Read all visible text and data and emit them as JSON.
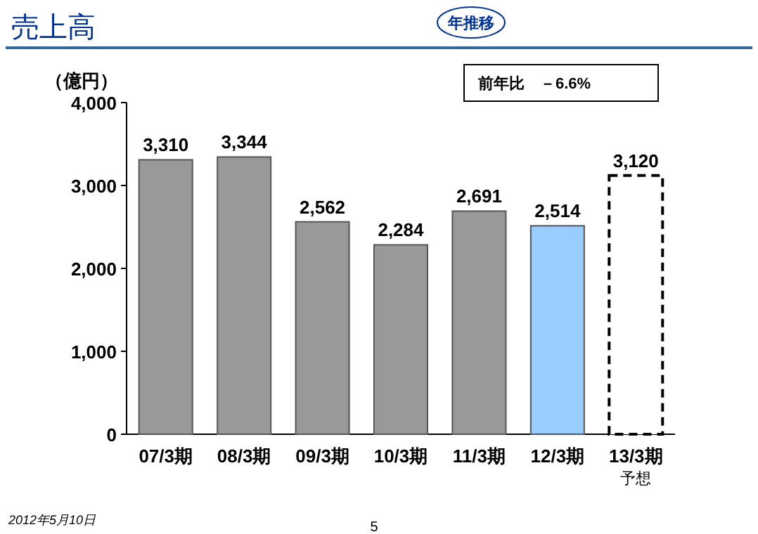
{
  "chart_data": {
    "type": "bar",
    "title": "売上高",
    "ylabel": "（億円）",
    "categories": [
      "07/3期",
      "08/3期",
      "09/3期",
      "10/3期",
      "11/3期",
      "12/3期",
      "13/3期"
    ],
    "stacked": true,
    "series": [
      {
        "colors": [
          "#999999",
          "#999999",
          "#999999",
          "#999999",
          "#999999",
          "#99ccff",
          null
        ],
        "values": [
          3310,
          3344,
          2562,
          2284,
          2691,
          2514,
          null
        ],
        "value_labels": [
          "3,310",
          "3,344",
          "2,562",
          "2,284",
          "2,691",
          "2,514",
          null
        ]
      },
      {
        "color": "#ffffff",
        "line_style": "dashed",
        "values": [
          null,
          null,
          null,
          null,
          null,
          null,
          3120
        ],
        "value_labels": [
          null,
          null,
          null,
          null,
          null,
          null,
          "3,120"
        ]
      }
    ],
    "ylim": [
      0,
      4000
    ],
    "yticks": [
      {
        "value": 0,
        "label": "0"
      },
      {
        "value": 1000,
        "label": "1,000"
      },
      {
        "value": 2000,
        "label": "2,000"
      },
      {
        "value": 3000,
        "label": "3,000"
      },
      {
        "value": 4000,
        "label": "4,000"
      }
    ],
    "annotations": [
      "年推移",
      "前年比　－6.6%",
      "2012年5月10日",
      "5",
      "予想"
    ]
  }
}
